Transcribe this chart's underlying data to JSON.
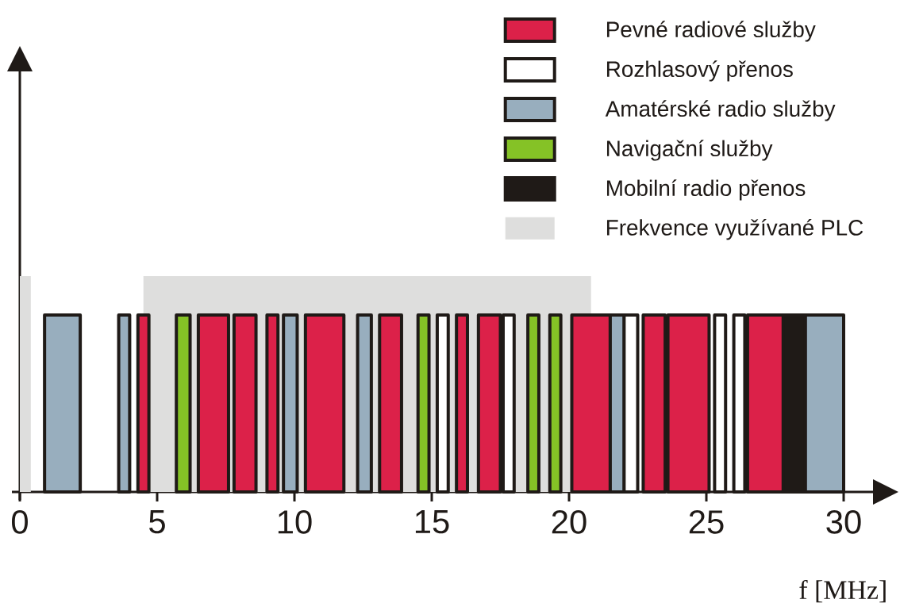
{
  "chart_data": {
    "type": "bar",
    "orientation": "horizontal",
    "categories": [
      null
    ],
    "xlabel": "f [MHz]",
    "xlim": [
      0,
      30
    ],
    "xticks": [
      0,
      5,
      10,
      15,
      20,
      25,
      30
    ],
    "legend": "top right",
    "series": [
      {
        "name": "Pevné radiové služby",
        "color": "#dc2149",
        "base": [
          4.3
        ],
        "values": [
          0.4
        ]
      },
      {
        "color": "#dc2149",
        "base": [
          6.5
        ],
        "values": [
          1.1
        ]
      },
      {
        "color": "#dc2149",
        "base": [
          7.8
        ],
        "values": [
          0.8
        ]
      },
      {
        "color": "#dc2149",
        "base": [
          9.0
        ],
        "values": [
          0.4
        ]
      },
      {
        "color": "#dc2149",
        "base": [
          10.4
        ],
        "values": [
          1.4
        ]
      },
      {
        "color": "#dc2149",
        "base": [
          13.1
        ],
        "values": [
          0.8
        ]
      },
      {
        "color": "#dc2149",
        "base": [
          15.9
        ],
        "values": [
          0.4
        ]
      },
      {
        "color": "#dc2149",
        "base": [
          16.7
        ],
        "values": [
          0.8
        ]
      },
      {
        "color": "#dc2149",
        "base": [
          20.1
        ],
        "values": [
          1.4
        ]
      },
      {
        "color": "#dc2149",
        "base": [
          22.7
        ],
        "values": [
          0.8
        ]
      },
      {
        "color": "#dc2149",
        "base": [
          23.6
        ],
        "values": [
          1.5
        ]
      },
      {
        "color": "#dc2149",
        "base": [
          26.5
        ],
        "values": [
          1.3
        ]
      },
      {
        "name": "Rozhlasový přenos",
        "color": "#ffffff",
        "base": [
          15.2
        ],
        "values": [
          0.4
        ]
      },
      {
        "color": "#ffffff",
        "base": [
          17.6
        ],
        "values": [
          0.4
        ]
      },
      {
        "color": "#ffffff",
        "base": [
          22.0
        ],
        "values": [
          0.5
        ]
      },
      {
        "color": "#ffffff",
        "base": [
          25.3
        ],
        "values": [
          0.4
        ]
      },
      {
        "color": "#ffffff",
        "base": [
          26.0
        ],
        "values": [
          0.4
        ]
      },
      {
        "name": "Amatérské radio služby",
        "color": "#98aebe",
        "base": [
          0.9
        ],
        "values": [
          1.3
        ]
      },
      {
        "color": "#98aebe",
        "base": [
          3.6
        ],
        "values": [
          0.4
        ]
      },
      {
        "color": "#98aebe",
        "base": [
          9.6
        ],
        "values": [
          0.5
        ]
      },
      {
        "color": "#98aebe",
        "base": [
          12.3
        ],
        "values": [
          0.5
        ]
      },
      {
        "color": "#98aebe",
        "base": [
          21.5
        ],
        "values": [
          0.5
        ]
      },
      {
        "color": "#98aebe",
        "base": [
          28.6
        ],
        "values": [
          1.4
        ]
      },
      {
        "name": "Navigační služby",
        "color": "#85c226",
        "base": [
          5.7
        ],
        "values": [
          0.5
        ]
      },
      {
        "color": "#85c226",
        "base": [
          14.5
        ],
        "values": [
          0.4
        ]
      },
      {
        "color": "#85c226",
        "base": [
          18.5
        ],
        "values": [
          0.4
        ]
      },
      {
        "color": "#85c226",
        "base": [
          19.3
        ],
        "values": [
          0.4
        ]
      },
      {
        "name": "Mobilní radio přenos",
        "color": "#1f1a17",
        "base": [
          27.8
        ],
        "values": [
          0.8
        ]
      }
    ],
    "bands": [
      {
        "axis": "x",
        "from": 0.0,
        "to": 0.4,
        "label": "Frekvence využívané PLC",
        "color": "#dededd"
      },
      {
        "axis": "x",
        "from": 4.5,
        "to": 20.8,
        "color": "#dededd"
      }
    ]
  }
}
